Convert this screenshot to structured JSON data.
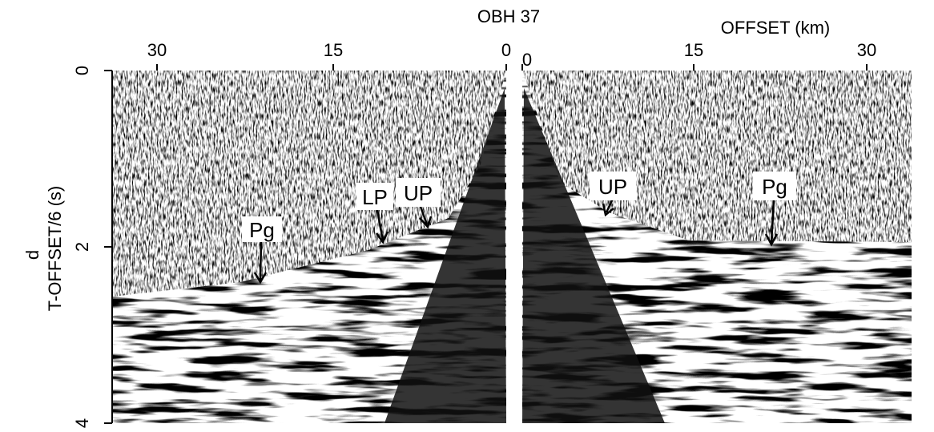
{
  "header": {
    "title": "OBH 37",
    "panel_label": "d"
  },
  "x_axis": {
    "label": "OFFSET (km)",
    "left_ticks": [
      "30",
      "15",
      "0"
    ],
    "right_ticks": [
      "0",
      "15",
      "30"
    ]
  },
  "y_axis": {
    "label": "T-OFFSET/6 (s)",
    "ticks": [
      "0",
      "2",
      "4"
    ]
  },
  "annotations": [
    {
      "text": "Pg"
    },
    {
      "text": "LP"
    },
    {
      "text": "UP"
    },
    {
      "text": "UP"
    },
    {
      "text": "Pg"
    }
  ]
}
